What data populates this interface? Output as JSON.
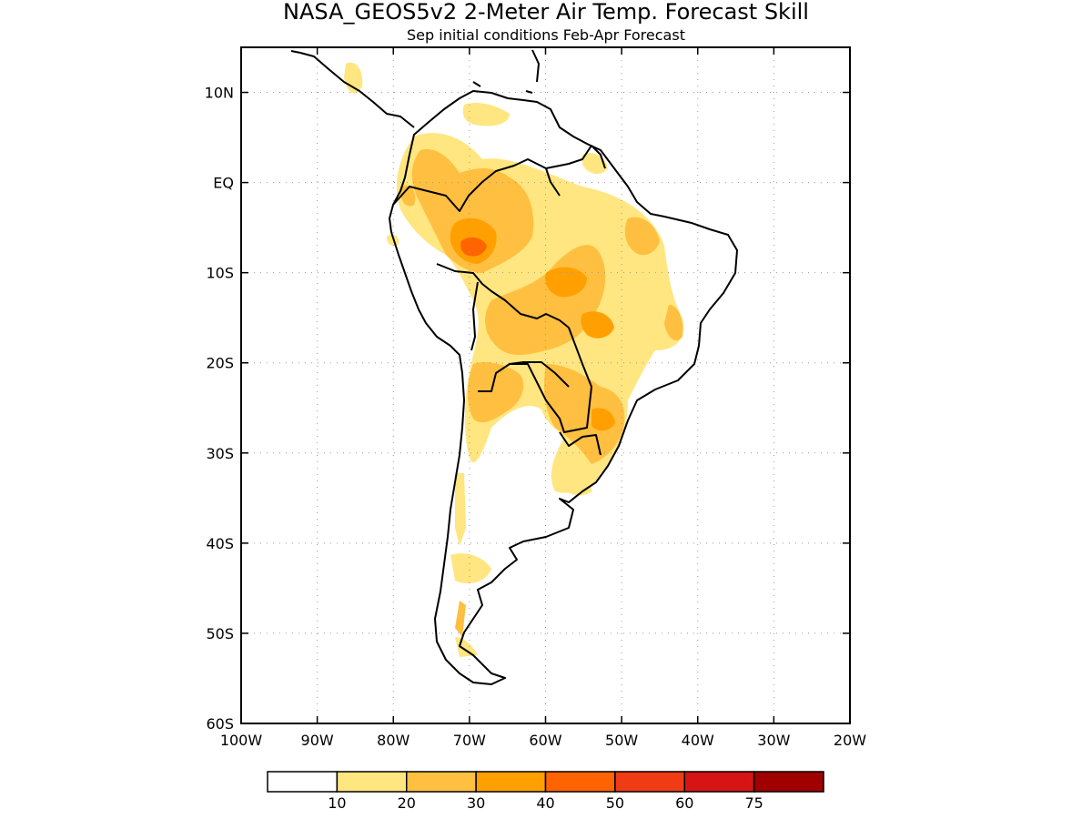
{
  "header": {
    "title": "NASA_GEOS5v2 2-Meter Air Temp. Forecast Skill",
    "subtitle": "Sep initial conditions  Feb-Apr Forecast"
  },
  "map": {
    "region": "South America",
    "lon_range": [
      -100,
      -20
    ],
    "lat_range": [
      -60,
      15
    ],
    "grid": true,
    "lon_labels": [
      "100W",
      "90W",
      "80W",
      "70W",
      "60W",
      "50W",
      "40W",
      "30W",
      "20W"
    ],
    "lat_labels": [
      "10N",
      "EQ",
      "10S",
      "20S",
      "30S",
      "40S",
      "50S",
      "60S"
    ]
  },
  "legend": {
    "tick_labels": [
      "10",
      "20",
      "30",
      "40",
      "50",
      "60",
      "75"
    ],
    "colors": [
      "#ffffff",
      "#ffe680",
      "#ffbf40",
      "#ffa000",
      "#ff6400",
      "#f03c14",
      "#d71414",
      "#a00000"
    ]
  }
}
